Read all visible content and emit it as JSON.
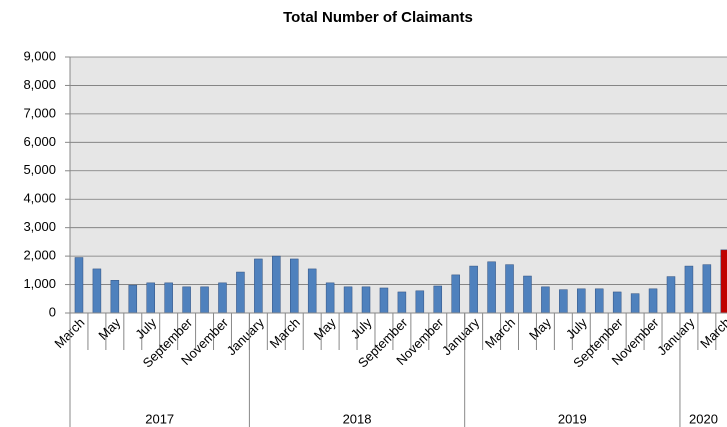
{
  "chart_data": {
    "type": "bar",
    "title": "Total Number of Claimants",
    "categories": [
      "March",
      null,
      "May",
      null,
      "July",
      null,
      "September",
      null,
      "November",
      null,
      "January",
      null,
      "March",
      null,
      "May",
      null,
      "July",
      null,
      "September",
      null,
      "November",
      null,
      "January",
      null,
      "March",
      null,
      "May",
      null,
      "July",
      null,
      "September",
      null,
      "November",
      null,
      "January",
      null,
      "March"
    ],
    "values": [
      1950,
      1550,
      1150,
      980,
      1060,
      1060,
      920,
      920,
      1060,
      1440,
      1900,
      2000,
      1900,
      1550,
      1060,
      920,
      920,
      880,
      740,
      780,
      950,
      1340,
      1650,
      1800,
      1700,
      1300,
      920,
      820,
      850,
      850,
      740,
      680,
      850,
      1280,
      1650,
      1700,
      2220
    ],
    "colors": [
      "#4f81bd",
      "#4f81bd",
      "#4f81bd",
      "#4f81bd",
      "#4f81bd",
      "#4f81bd",
      "#4f81bd",
      "#4f81bd",
      "#4f81bd",
      "#4f81bd",
      "#4f81bd",
      "#4f81bd",
      "#4f81bd",
      "#4f81bd",
      "#4f81bd",
      "#4f81bd",
      "#4f81bd",
      "#4f81bd",
      "#4f81bd",
      "#4f81bd",
      "#4f81bd",
      "#4f81bd",
      "#4f81bd",
      "#4f81bd",
      "#4f81bd",
      "#4f81bd",
      "#4f81bd",
      "#4f81bd",
      "#4f81bd",
      "#4f81bd",
      "#4f81bd",
      "#4f81bd",
      "#4f81bd",
      "#4f81bd",
      "#4f81bd",
      "#4f81bd",
      "#c00000"
    ],
    "x_groups": [
      {
        "label": "2017",
        "span": 10
      },
      {
        "label": "2018",
        "span": 12
      },
      {
        "label": "2019",
        "span": 12
      },
      {
        "label": "2020",
        "span": 3
      }
    ],
    "ylim": [
      0,
      9000
    ],
    "yticks": [
      0,
      {
        "value": 1000,
        "label": "1,000"
      },
      {
        "value": 2000,
        "label": "2,000"
      },
      {
        "value": 3000,
        "label": "3,000"
      },
      {
        "value": 4000,
        "label": "4,000"
      },
      {
        "value": 5000,
        "label": "5,000"
      },
      {
        "value": 6000,
        "label": "6,000"
      },
      {
        "value": 7000,
        "label": "7,000"
      },
      {
        "value": 8000,
        "label": "8,000"
      },
      {
        "value": 9000,
        "label": "9,000"
      }
    ],
    "grid": true
  }
}
